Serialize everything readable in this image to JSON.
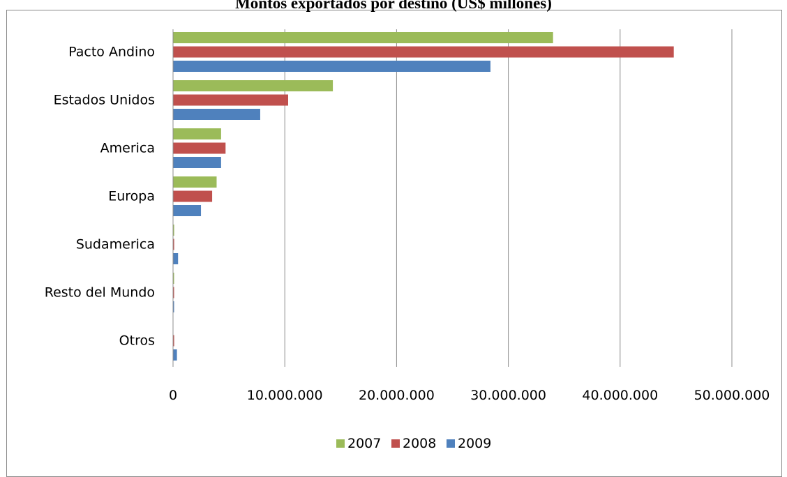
{
  "chart_data": {
    "type": "bar",
    "orientation": "horizontal",
    "title": "Montos exportados por destino (US$ millones)",
    "categories": [
      "Pacto Andino",
      "Estados Unidos",
      "America",
      "Europa",
      "Sudamerica",
      "Resto del Mundo",
      "Otros"
    ],
    "series": [
      {
        "name": "2007",
        "color": "#9BBB59",
        "values": [
          34000000,
          14300000,
          4300000,
          3900000,
          100000,
          50000,
          0
        ]
      },
      {
        "name": "2008",
        "color": "#C0504D",
        "values": [
          44800000,
          10300000,
          4700000,
          3500000,
          100000,
          50000,
          100000
        ]
      },
      {
        "name": "2009",
        "color": "#4F81BD",
        "values": [
          28400000,
          7800000,
          4300000,
          2500000,
          450000,
          50000,
          350000
        ]
      }
    ],
    "xlim": [
      0,
      50000000
    ],
    "xticks": [
      0,
      10000000,
      20000000,
      30000000,
      40000000,
      50000000
    ],
    "xtick_labels": [
      "0",
      "10.000.000",
      "20.000.000",
      "30.000.000",
      "40.000.000",
      "50.000.000"
    ],
    "grid": true,
    "legend_position": "bottom"
  }
}
